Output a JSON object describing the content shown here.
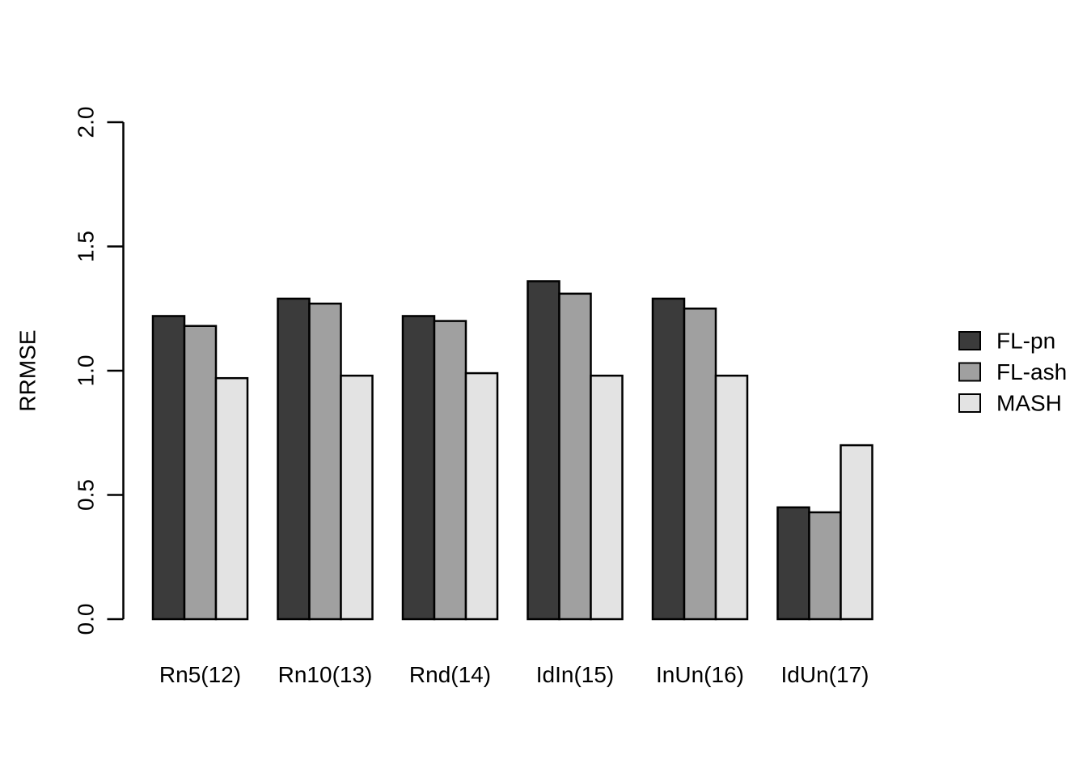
{
  "chart_data": {
    "type": "bar",
    "title": "",
    "xlabel": "",
    "ylabel": "RRMSE",
    "ylim": [
      0,
      2
    ],
    "yticks": [
      "0.0",
      "0.5",
      "1.0",
      "1.5",
      "2.0"
    ],
    "grid": false,
    "legend_position": "right",
    "background": "#ffffff",
    "bar_border_color": "#000000",
    "axis_color": "#000000",
    "categories": [
      "Rn5(12)",
      "Rn10(13)",
      "Rnd(14)",
      "IdIn(15)",
      "InUn(16)",
      "IdUn(17)"
    ],
    "series": [
      {
        "name": "FL-pn",
        "color": "#3b3b3b",
        "values": [
          1.22,
          1.29,
          1.22,
          1.36,
          1.29,
          0.45
        ]
      },
      {
        "name": "FL-ash",
        "color": "#a0a0a0",
        "values": [
          1.18,
          1.27,
          1.2,
          1.31,
          1.25,
          0.43
        ]
      },
      {
        "name": "MASH",
        "color": "#e3e3e3",
        "values": [
          0.97,
          0.98,
          0.99,
          0.98,
          0.98,
          0.7
        ]
      }
    ]
  }
}
